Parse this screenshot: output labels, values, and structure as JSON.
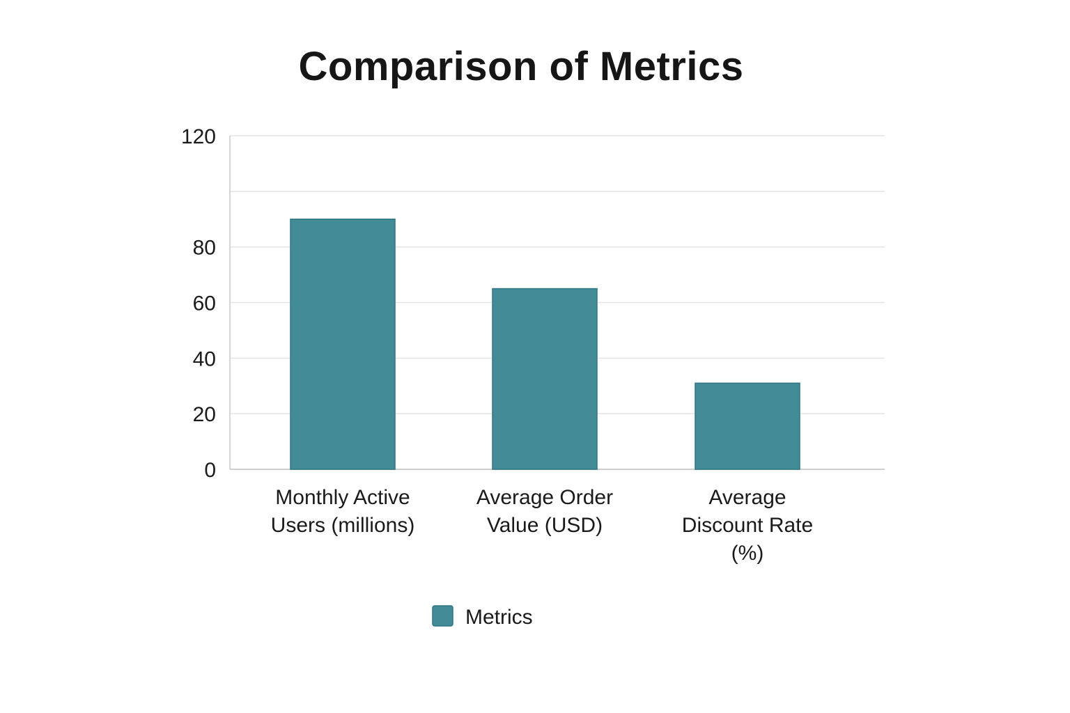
{
  "chart_data": {
    "type": "bar",
    "title": "Comparison of Metrics",
    "categories": [
      [
        "Monthly Active",
        "Users (millions)"
      ],
      [
        "Average Order",
        "Value (USD)"
      ],
      [
        "Average",
        "Discount Rate",
        "(%)"
      ]
    ],
    "series": [
      {
        "name": "Metrics",
        "values": [
          90,
          65,
          31
        ],
        "color": "#428b97"
      }
    ],
    "ylim": [
      0,
      120
    ],
    "yticks": [
      0,
      20,
      40,
      60,
      80,
      100,
      120
    ],
    "ytick_labels": [
      "0",
      "20",
      "40",
      "60",
      "80",
      "",
      "120"
    ],
    "grid": true,
    "legend_position": "bottom-center"
  }
}
